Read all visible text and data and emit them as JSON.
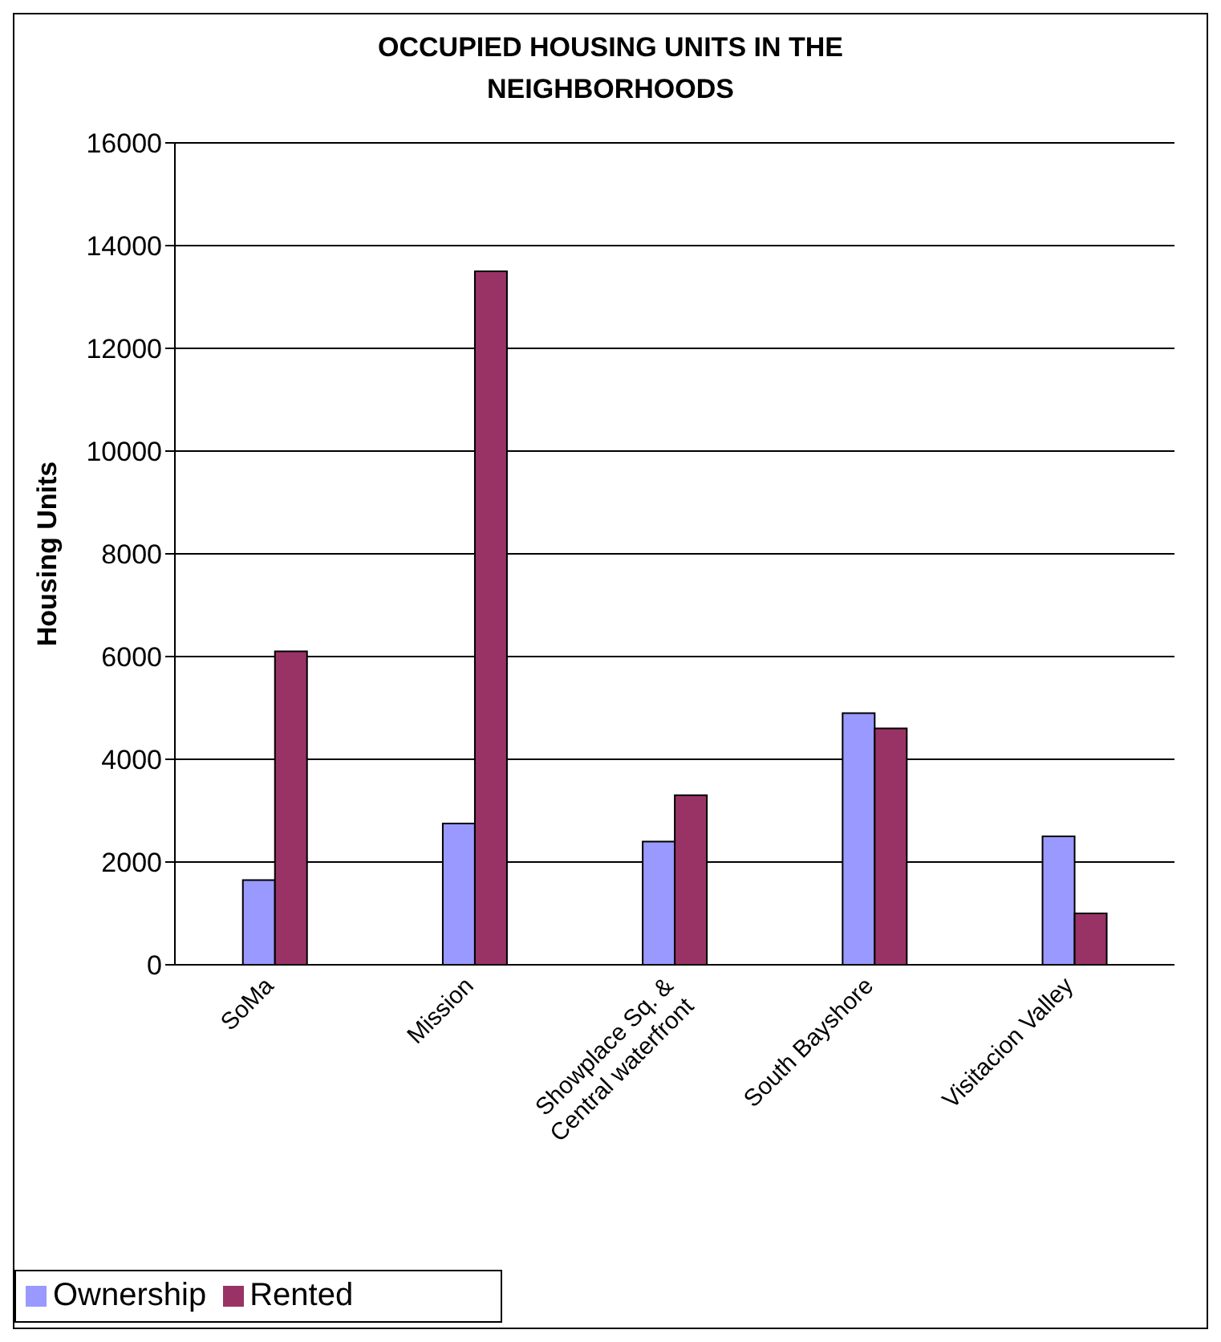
{
  "chart_data": {
    "type": "bar",
    "title": "OCCUPIED HOUSING UNITS IN THE NEIGHBORHOODS",
    "ylabel": "Housing Units",
    "categories": [
      "SoMa",
      "Mission",
      "Showplace Sq. & Central waterfront",
      "South Bayshore",
      "Visitacion Valley"
    ],
    "series": [
      {
        "name": "Ownership",
        "color": "#9999ff",
        "values": [
          1650,
          2750,
          2400,
          4900,
          2500
        ]
      },
      {
        "name": "Rented",
        "color": "#993366",
        "values": [
          6100,
          13500,
          3300,
          4600,
          1000
        ]
      }
    ],
    "ylim": [
      0,
      16000
    ],
    "yticks": [
      0,
      2000,
      4000,
      6000,
      8000,
      10000,
      12000,
      14000,
      16000
    ],
    "grid": "y",
    "legend": "bottom left"
  }
}
